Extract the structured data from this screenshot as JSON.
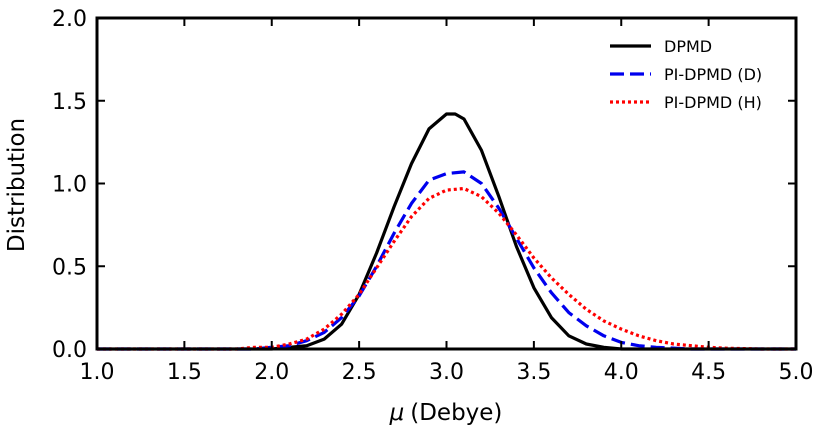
{
  "chart_data": {
    "type": "line",
    "xlabel_symbol": "μ",
    "xlabel": "(Debye)",
    "ylabel": "Distribution",
    "xlim": [
      1.0,
      5.0
    ],
    "ylim": [
      0.0,
      2.0
    ],
    "x_ticks": [
      "1.0",
      "1.5",
      "2.0",
      "2.5",
      "3.0",
      "3.5",
      "4.0",
      "4.5",
      "5.0"
    ],
    "y_ticks": [
      "0.0",
      "0.5",
      "1.0",
      "1.5",
      "2.0"
    ],
    "legend_position": "top-right",
    "series": [
      {
        "name": "DPMD",
        "color": "#000000",
        "style": "solid",
        "x": [
          1.0,
          2.0,
          2.2,
          2.3,
          2.4,
          2.5,
          2.6,
          2.7,
          2.8,
          2.9,
          3.0,
          3.05,
          3.1,
          3.2,
          3.3,
          3.4,
          3.5,
          3.6,
          3.7,
          3.8,
          3.9,
          4.0,
          4.1,
          5.0
        ],
        "y": [
          0.0,
          0.0,
          0.02,
          0.06,
          0.15,
          0.33,
          0.58,
          0.86,
          1.12,
          1.33,
          1.42,
          1.42,
          1.39,
          1.2,
          0.92,
          0.62,
          0.37,
          0.19,
          0.08,
          0.03,
          0.01,
          0.0,
          0.0,
          0.0
        ]
      },
      {
        "name": "PI-DPMD (D)",
        "color": "#0000ee",
        "style": "dashed",
        "x": [
          1.0,
          1.9,
          2.0,
          2.1,
          2.2,
          2.3,
          2.4,
          2.5,
          2.6,
          2.7,
          2.8,
          2.9,
          3.0,
          3.1,
          3.2,
          3.3,
          3.4,
          3.5,
          3.6,
          3.7,
          3.8,
          3.9,
          4.0,
          4.1,
          4.2,
          4.4,
          5.0
        ],
        "y": [
          0.0,
          0.0,
          0.01,
          0.02,
          0.05,
          0.1,
          0.19,
          0.32,
          0.5,
          0.7,
          0.88,
          1.02,
          1.06,
          1.07,
          1.0,
          0.85,
          0.67,
          0.49,
          0.34,
          0.22,
          0.14,
          0.08,
          0.04,
          0.02,
          0.01,
          0.0,
          0.0
        ]
      },
      {
        "name": "PI-DPMD (H)",
        "color": "#ff0000",
        "style": "dotted",
        "x": [
          1.0,
          1.8,
          1.9,
          2.0,
          2.1,
          2.2,
          2.3,
          2.4,
          2.5,
          2.6,
          2.7,
          2.8,
          2.9,
          3.0,
          3.1,
          3.2,
          3.3,
          3.4,
          3.5,
          3.6,
          3.7,
          3.8,
          3.9,
          4.0,
          4.1,
          4.2,
          4.3,
          4.4,
          4.5,
          4.6,
          4.8,
          5.0
        ],
        "y": [
          0.0,
          0.0,
          0.01,
          0.01,
          0.03,
          0.06,
          0.12,
          0.21,
          0.33,
          0.49,
          0.65,
          0.8,
          0.91,
          0.96,
          0.97,
          0.92,
          0.82,
          0.69,
          0.55,
          0.43,
          0.33,
          0.24,
          0.17,
          0.12,
          0.08,
          0.05,
          0.03,
          0.02,
          0.01,
          0.005,
          0.0,
          0.0
        ]
      }
    ]
  }
}
